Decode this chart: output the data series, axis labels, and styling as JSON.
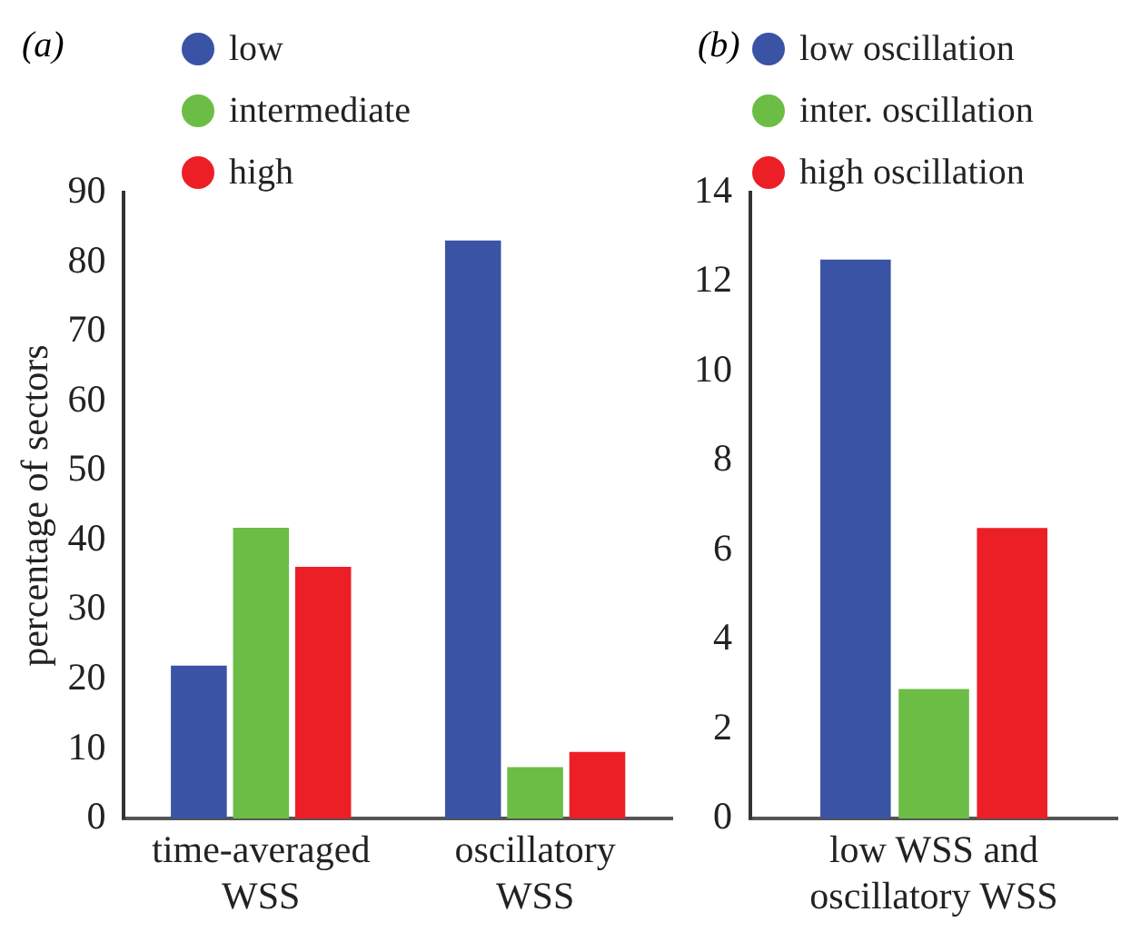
{
  "chart_data": [
    {
      "type": "bar",
      "title": "(a)",
      "ylabel": "percentage of sectors",
      "categories": [
        "time-averaged\nWSS",
        "oscillatory\nWSS"
      ],
      "ylim": [
        0,
        90
      ],
      "yticks": [
        0,
        10,
        20,
        30,
        40,
        50,
        60,
        70,
        80,
        90
      ],
      "grid": false,
      "legend": "top left",
      "series": [
        {
          "name": "low",
          "color": "#3a53a4",
          "values": [
            22,
            83.1
          ]
        },
        {
          "name": "intermediate",
          "color": "#6cbd45",
          "values": [
            41.8,
            7.4
          ]
        },
        {
          "name": "high",
          "color": "#ec1f26",
          "values": [
            36.2,
            9.6
          ]
        }
      ]
    },
    {
      "type": "bar",
      "title": "(b)",
      "categories": [
        "low WSS and\noscillatory WSS"
      ],
      "ylim": [
        0,
        14
      ],
      "yticks": [
        0,
        2,
        4,
        6,
        8,
        10,
        12,
        14
      ],
      "grid": false,
      "legend": "top left",
      "series": [
        {
          "name": "low oscillation",
          "color": "#3a53a4",
          "values": [
            12.5
          ]
        },
        {
          "name": "inter. oscillation",
          "color": "#6cbd45",
          "values": [
            2.9
          ]
        },
        {
          "name": "high oscillation",
          "color": "#ec1f26",
          "values": [
            6.5
          ]
        }
      ]
    }
  ]
}
